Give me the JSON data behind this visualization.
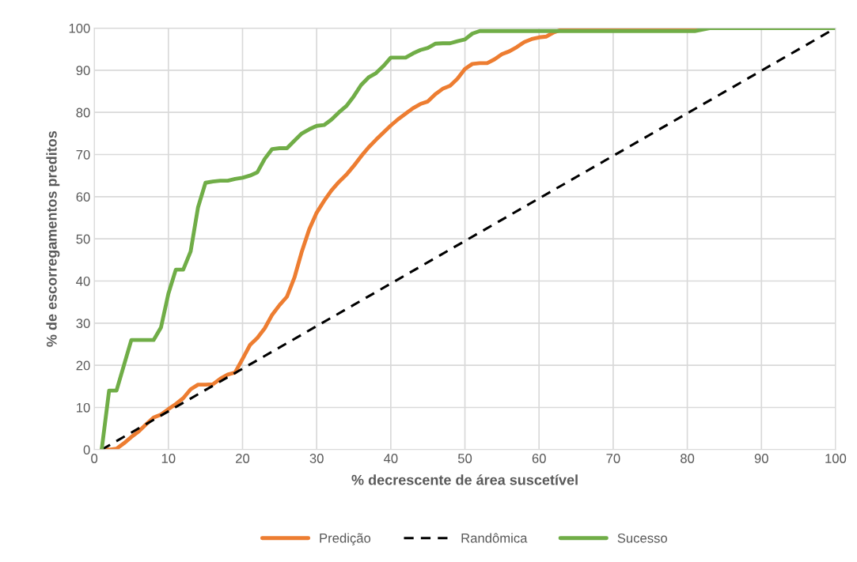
{
  "chart_data": {
    "type": "line",
    "xlabel": "% decrescente de área suscetível",
    "ylabel": "% de escorregamentos preditos",
    "xlim": [
      0,
      100
    ],
    "ylim": [
      0,
      100
    ],
    "xticks": [
      0,
      10,
      20,
      30,
      40,
      50,
      60,
      70,
      80,
      90,
      100
    ],
    "yticks": [
      0,
      10,
      20,
      30,
      40,
      50,
      60,
      70,
      80,
      90,
      100
    ],
    "grid": true,
    "legend": "bottom",
    "marker": "none",
    "series": [
      {
        "name": "Predição",
        "color": "#ed7d31",
        "line_style": "solid",
        "x": [
          1,
          2,
          3,
          4,
          5,
          6,
          7,
          8,
          9,
          10,
          11,
          12,
          13,
          14,
          15,
          16,
          17,
          18,
          19,
          20,
          21,
          22,
          23,
          24,
          25,
          26,
          27,
          28,
          29,
          30,
          31,
          32,
          33,
          34,
          35,
          36,
          37,
          38,
          39,
          40,
          41,
          42,
          43,
          44,
          45,
          46,
          47,
          48,
          49,
          50,
          51,
          52,
          53,
          54,
          55,
          56,
          57,
          58,
          59,
          60,
          61,
          62,
          63,
          74,
          82
        ],
        "values": [
          0,
          0,
          0.2,
          1.5,
          3,
          4.3,
          6,
          7.6,
          8.3,
          9.6,
          10.8,
          12.2,
          14.3,
          15.4,
          15.4,
          15.5,
          16.8,
          17.8,
          18.3,
          21.5,
          24.8,
          26.5,
          28.8,
          32,
          34.3,
          36.3,
          40.8,
          47,
          52.3,
          56.2,
          59,
          61.5,
          63.5,
          65.2,
          67.3,
          69.6,
          71.7,
          73.5,
          75.2,
          76.9,
          78.4,
          79.7,
          81,
          82,
          82.6,
          84.3,
          85.6,
          86.3,
          88,
          90.3,
          91.5,
          91.7,
          91.7,
          92.6,
          93.8,
          94.5,
          95.5,
          96.7,
          97.4,
          97.8,
          98,
          99,
          99.6,
          100,
          100
        ]
      },
      {
        "name": "Randômica",
        "color": "#000000",
        "line_style": "dashed",
        "x": [
          1,
          100
        ],
        "values": [
          0,
          100
        ]
      },
      {
        "name": "Sucesso",
        "color": "#70ad47",
        "line_style": "solid",
        "x": [
          1,
          2,
          3,
          4,
          5,
          6,
          7,
          8,
          9,
          10,
          11,
          12,
          13,
          14,
          15,
          16,
          17,
          18,
          19,
          20,
          21,
          22,
          23,
          24,
          25,
          26,
          27,
          28,
          29,
          30,
          31,
          32,
          33,
          34,
          35,
          36,
          37,
          38,
          39,
          40,
          41,
          42,
          43,
          44,
          45,
          46,
          47,
          48,
          49,
          50,
          51,
          52,
          81,
          83,
          100
        ],
        "values": [
          0,
          14,
          14,
          20,
          26,
          26,
          26,
          26,
          29,
          37,
          42.7,
          42.7,
          47,
          57.5,
          63.3,
          63.6,
          63.8,
          63.8,
          64.2,
          64.5,
          65,
          65.8,
          69,
          71.3,
          71.5,
          71.5,
          73.3,
          75,
          76,
          76.8,
          77,
          78.3,
          80,
          81.5,
          83.8,
          86.5,
          88.3,
          89.3,
          91,
          93,
          93,
          93,
          94,
          94.8,
          95.3,
          96.3,
          96.4,
          96.4,
          96.9,
          97.3,
          98.7,
          99.3,
          99.3,
          100,
          100
        ]
      }
    ]
  }
}
